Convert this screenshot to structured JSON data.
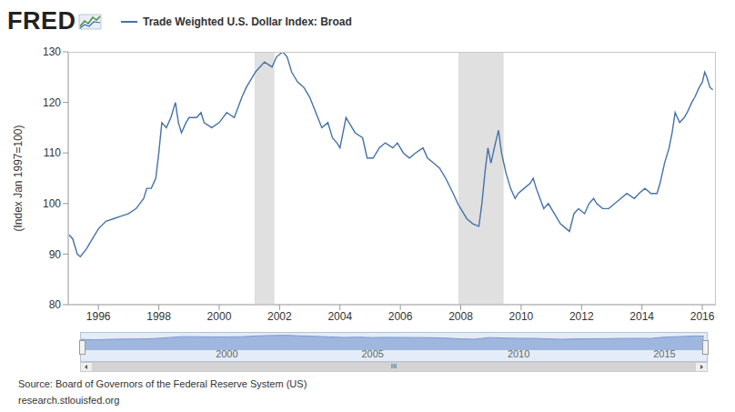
{
  "logo": "FRED",
  "chart_data": [
    {
      "type": "line",
      "x": [
        1995.0,
        1995.15,
        1995.3,
        1995.4,
        1995.6,
        1995.8,
        1996.0,
        1996.25,
        1996.5,
        1996.75,
        1997.0,
        1997.25,
        1997.5,
        1997.6,
        1997.75,
        1997.9,
        1998.0,
        1998.1,
        1998.25,
        1998.4,
        1998.55,
        1998.65,
        1998.75,
        1998.9,
        1999.0,
        1999.25,
        1999.4,
        1999.5,
        1999.75,
        2000.0,
        2000.25,
        2000.5,
        2000.75,
        2000.9,
        2001.0,
        2001.2,
        2001.5,
        2001.75,
        2001.9,
        2002.1,
        2002.25,
        2002.4,
        2002.6,
        2002.8,
        2003.0,
        2003.2,
        2003.4,
        2003.6,
        2003.75,
        2003.9,
        2004.0,
        2004.2,
        2004.3,
        2004.5,
        2004.75,
        2004.9,
        2005.1,
        2005.3,
        2005.5,
        2005.75,
        2005.9,
        2006.1,
        2006.3,
        2006.5,
        2006.75,
        2006.9,
        2007.1,
        2007.3,
        2007.5,
        2007.75,
        2007.9,
        2008.0,
        2008.2,
        2008.4,
        2008.6,
        2008.7,
        2008.8,
        2008.9,
        2009.0,
        2009.15,
        2009.25,
        2009.35,
        2009.5,
        2009.65,
        2009.8,
        2009.9,
        2010.1,
        2010.3,
        2010.4,
        2010.5,
        2010.75,
        2010.9,
        2011.1,
        2011.3,
        2011.5,
        2011.6,
        2011.75,
        2011.9,
        2012.1,
        2012.25,
        2012.4,
        2012.5,
        2012.7,
        2012.9,
        2013.1,
        2013.3,
        2013.5,
        2013.75,
        2013.9,
        2014.1,
        2014.3,
        2014.5,
        2014.6,
        2014.75,
        2014.9,
        2015.0,
        2015.1,
        2015.25,
        2015.4,
        2015.5,
        2015.65,
        2015.75,
        2015.9,
        2016.0,
        2016.08,
        2016.15,
        2016.25,
        2016.35
      ],
      "series": [
        {
          "name": "Trade Weighted U.S. Dollar Index: Broad",
          "color": "#4572a7",
          "values": [
            94,
            93,
            90,
            89.5,
            91,
            93,
            95,
            96.5,
            97,
            97.5,
            98,
            99,
            101,
            103,
            103,
            105,
            110,
            116,
            115,
            117,
            120,
            116,
            114,
            116,
            117,
            117,
            118,
            116,
            115,
            116,
            118,
            117,
            121,
            123,
            124,
            126,
            128,
            127,
            129,
            130,
            129,
            126,
            124,
            123,
            121,
            118,
            115,
            116,
            113,
            112,
            111,
            117,
            116,
            114,
            113,
            109,
            109,
            111,
            112,
            111,
            112,
            110,
            109,
            110,
            111,
            109,
            108,
            107,
            105,
            102,
            100,
            99,
            97,
            96,
            95.5,
            100,
            106,
            111,
            108,
            112,
            114.5,
            110,
            106,
            103,
            101,
            102,
            103,
            104,
            105,
            103,
            99,
            100,
            98,
            96,
            95,
            94.5,
            98,
            99,
            98,
            100,
            101,
            100,
            99,
            99,
            100,
            101,
            102,
            101,
            102,
            103,
            102,
            102,
            104,
            108,
            111,
            114,
            118,
            116,
            117,
            118,
            120,
            121,
            123,
            124,
            126,
            125,
            123,
            122.5
          ]
        }
      ],
      "y_label": "(Index Jan 1997=100)",
      "xlim": [
        1995.0,
        2016.45
      ],
      "xticks": [
        1996,
        1998,
        2000,
        2002,
        2004,
        2006,
        2008,
        2010,
        2012,
        2014,
        2016
      ],
      "ylim": [
        80,
        130
      ],
      "yticks": [
        80,
        90,
        100,
        110,
        120,
        130
      ],
      "grid": false,
      "legend": "top",
      "recessions": [
        [
          2001.17,
          2001.83
        ],
        [
          2007.92,
          2009.42
        ]
      ]
    },
    {
      "type": "area",
      "x": [
        1995.0,
        1995.5,
        1996.0,
        1996.5,
        1997.0,
        1997.5,
        1998.0,
        1998.5,
        1999.0,
        1999.5,
        2000.0,
        2000.5,
        2001.0,
        2001.5,
        2002.0,
        2002.5,
        2003.0,
        2003.5,
        2004.0,
        2004.5,
        2005.0,
        2005.5,
        2006.0,
        2006.5,
        2007.0,
        2007.5,
        2008.0,
        2008.5,
        2009.0,
        2009.5,
        2010.0,
        2010.5,
        2011.0,
        2011.5,
        2012.0,
        2012.5,
        2013.0,
        2013.5,
        2014.0,
        2014.5,
        2015.0,
        2015.5,
        2016.0,
        2016.35
      ],
      "series": [
        {
          "color": "#9fb7de",
          "values": [
            94,
            90,
            95,
            97,
            98,
            101,
            110,
            118,
            117,
            116,
            116,
            117,
            124,
            128,
            130,
            125,
            121,
            116,
            111,
            114,
            110,
            112,
            111,
            110,
            109,
            105,
            99,
            96,
            110,
            106,
            103,
            103,
            99,
            95,
            99,
            100,
            100,
            102,
            103,
            102,
            114,
            118,
            124,
            122.5
          ]
        }
      ],
      "xlim": [
        1995.0,
        2016.45
      ],
      "xticks": [
        2000,
        2005,
        2010,
        2015
      ],
      "ylim": [
        0,
        135
      ],
      "tick_labels": "x"
    }
  ],
  "scrollbar": "III",
  "source": "Source: Board of Governors of the Federal Reserve System (US)",
  "url": "research.stlouisfed.org"
}
